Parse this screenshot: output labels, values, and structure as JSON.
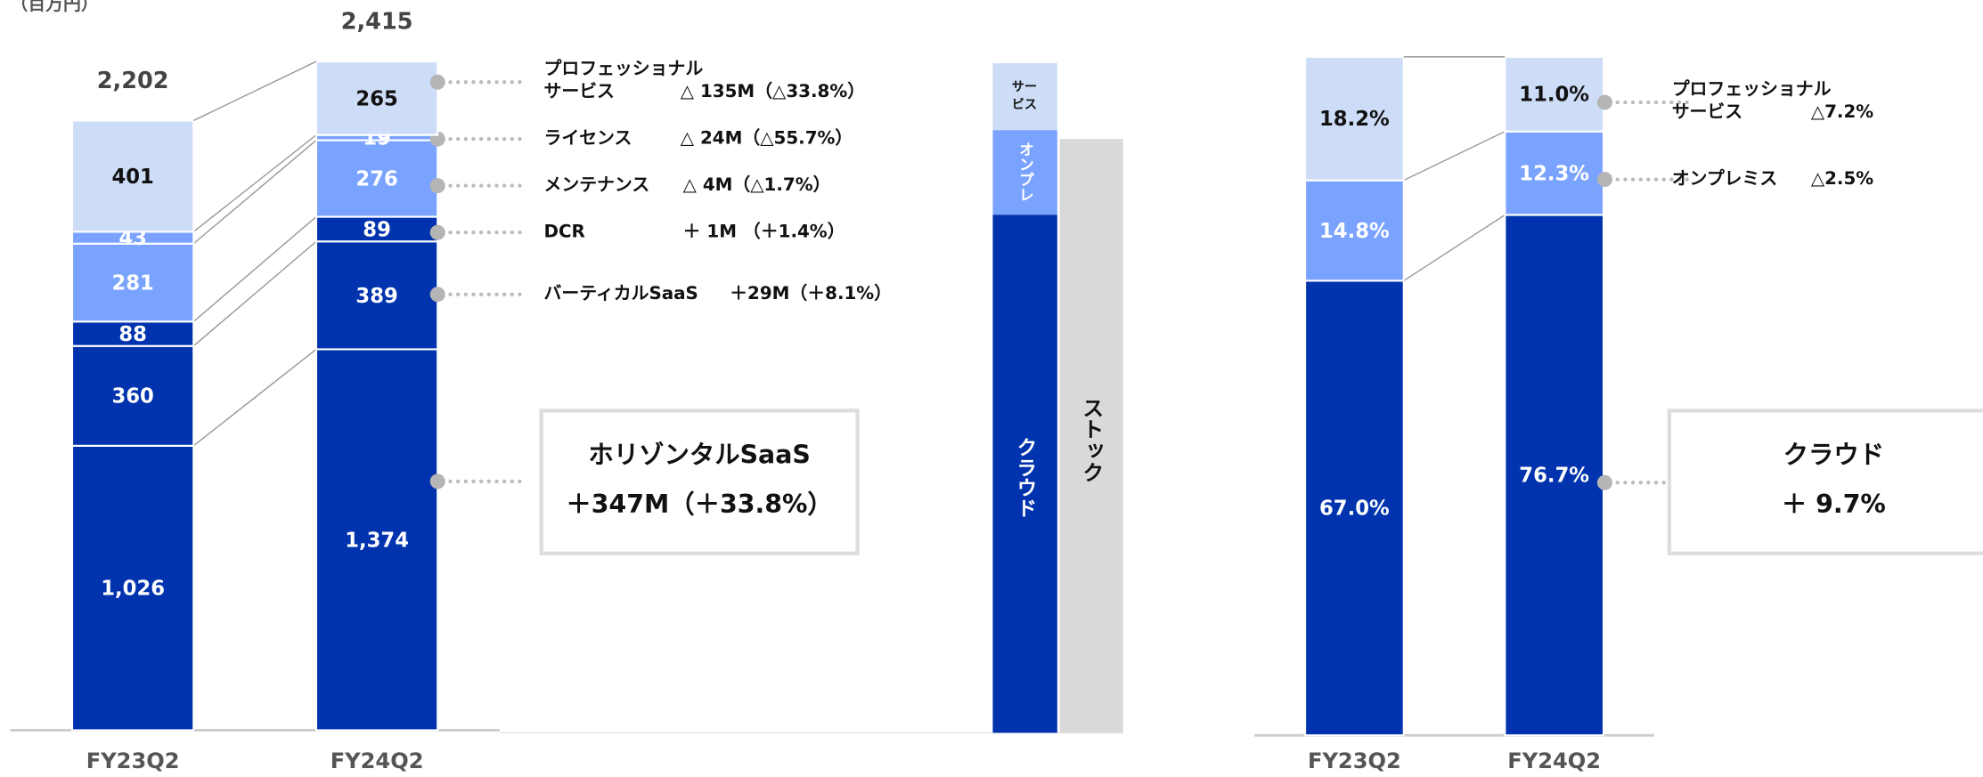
{
  "unit": "（百万円）",
  "chart_data": [
    {
      "type": "stacked_bar",
      "categories": [
        "FY23Q2",
        "FY24Q2"
      ],
      "totals": [
        2202,
        2415
      ],
      "total_labels": [
        "2,202",
        "2,415"
      ],
      "series": [
        {
          "color": "#0033ad",
          "label_color": "#fff",
          "values": [
            1026,
            1374
          ],
          "value_labels": [
            "1,026",
            "1,374"
          ],
          "annotation": {
            "name": "ホリゾンタルSaaS",
            "change": "＋347M（＋33.8%）",
            "box": true
          }
        },
        {
          "color": "#0033ad",
          "label_color": "#fff",
          "values": [
            360,
            389
          ],
          "annotation": {
            "name": "バーティカルSaaS",
            "change": "＋29M（＋8.1%）"
          }
        },
        {
          "color": "#0033ad",
          "label_color": "#fff",
          "values": [
            88,
            89
          ],
          "annotation": {
            "name": "DCR",
            "change": "＋ 1M （＋1.4%）"
          }
        },
        {
          "color": "#7aa2ff",
          "label_color": "#fff",
          "values": [
            281,
            276
          ],
          "annotation": {
            "name": "メンテナンス",
            "change": "△ 4M（△1.7%）"
          }
        },
        {
          "color": "#7aa2ff",
          "label_color": "#fff",
          "values": [
            43,
            19
          ],
          "annotation": {
            "name": "ライセンス",
            "change": "△ 24M（△55.7%）"
          }
        },
        {
          "color": "#cddcf7",
          "label_color": "#111",
          "values": [
            401,
            265
          ],
          "annotation": {
            "name": [
              "プロフェッショナル",
              "サービス"
            ],
            "change": "△ 135M（△33.8%）"
          }
        }
      ]
    },
    {
      "type": "stacked_bar",
      "categories": [
        "FY23Q2",
        "FY24Q2"
      ],
      "series": [
        {
          "color": "#0033ad",
          "label_color": "#fff",
          "values": [
            67.0,
            76.7
          ],
          "value_labels": [
            "67.0%",
            "76.7%"
          ],
          "annotation": {
            "name": "クラウド",
            "change": "＋ 9.7%",
            "box": true
          }
        },
        {
          "color": "#7aa2ff",
          "label_color": "#fff",
          "values": [
            14.8,
            12.3
          ],
          "value_labels": [
            "14.8%",
            "12.3%"
          ],
          "annotation": {
            "name": "オンプレミス",
            "change": "△2.5%"
          }
        },
        {
          "color": "#cddcf7",
          "label_color": "#111",
          "values": [
            18.2,
            11.0
          ],
          "value_labels": [
            "18.2%",
            "11.0%"
          ],
          "annotation": {
            "name": [
              "プロフェッショナル",
              "サービス"
            ],
            "change": "△7.2%"
          }
        }
      ]
    }
  ],
  "legend_bar": {
    "segments": [
      [
        "サー",
        "ビス"
      ],
      "オンプレ",
      "クラウド"
    ],
    "stock": "ストック"
  }
}
